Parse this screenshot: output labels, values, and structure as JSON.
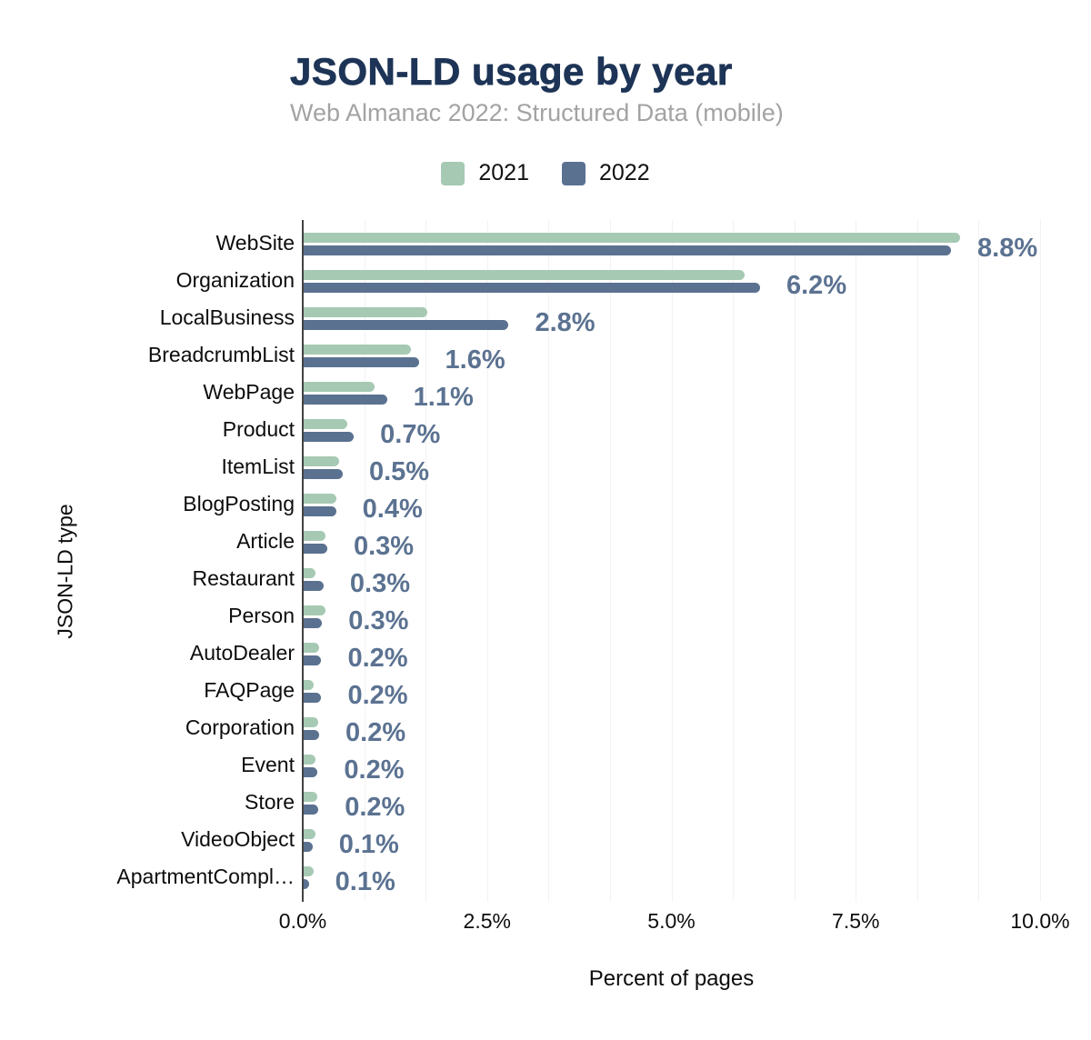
{
  "title": "JSON-LD usage by year",
  "subtitle": "Web Almanac 2022: Structured Data (mobile)",
  "legend": [
    {
      "label": "2021",
      "color": "#a6c9b4"
    },
    {
      "label": "2022",
      "color": "#5a7190"
    }
  ],
  "x_axis": {
    "title": "Percent of pages",
    "ticks": [
      "0.0%",
      "2.5%",
      "5.0%",
      "7.5%",
      "10.0%"
    ],
    "tick_values": [
      0,
      2.5,
      5,
      7.5,
      10
    ]
  },
  "y_axis": {
    "title": "JSON-LD type"
  },
  "colors": {
    "series_2021": "#a6c9b4",
    "series_2022": "#5a7190",
    "value_label": "#5b7291",
    "title": "#1d3456",
    "subtitle": "#a3a3a3",
    "gridline": "#f2f2f2",
    "axis_line": "#424242"
  },
  "chart_data": {
    "type": "bar",
    "orientation": "horizontal",
    "title": "JSON-LD usage by year",
    "subtitle": "Web Almanac 2022: Structured Data (mobile)",
    "xlabel": "Percent of pages",
    "ylabel": "JSON-LD type",
    "xlim": [
      0,
      10
    ],
    "grid": true,
    "legend_position": "top-center",
    "categories": [
      "WebSite",
      "Organization",
      "LocalBusiness",
      "BreadcrumbList",
      "WebPage",
      "Product",
      "ItemList",
      "BlogPosting",
      "Article",
      "Restaurant",
      "Person",
      "AutoDealer",
      "FAQPage",
      "Corporation",
      "Event",
      "Store",
      "VideoObject",
      "ApartmentCompl…"
    ],
    "series": [
      {
        "name": "2021",
        "values": [
          8.9,
          5.98,
          1.68,
          1.45,
          0.96,
          0.59,
          0.48,
          0.45,
          0.3,
          0.16,
          0.3,
          0.21,
          0.13,
          0.2,
          0.16,
          0.18,
          0.16,
          0.13
        ]
      },
      {
        "name": "2022",
        "values": [
          8.78,
          6.19,
          2.78,
          1.56,
          1.13,
          0.68,
          0.53,
          0.44,
          0.32,
          0.27,
          0.25,
          0.24,
          0.24,
          0.21,
          0.19,
          0.2,
          0.12,
          0.07
        ]
      }
    ],
    "data_labels": [
      "8.8%",
      "6.2%",
      "2.8%",
      "1.6%",
      "1.1%",
      "0.7%",
      "0.5%",
      "0.4%",
      "0.3%",
      "0.3%",
      "0.3%",
      "0.2%",
      "0.2%",
      "0.2%",
      "0.2%",
      "0.2%",
      "0.1%",
      "0.1%"
    ]
  }
}
